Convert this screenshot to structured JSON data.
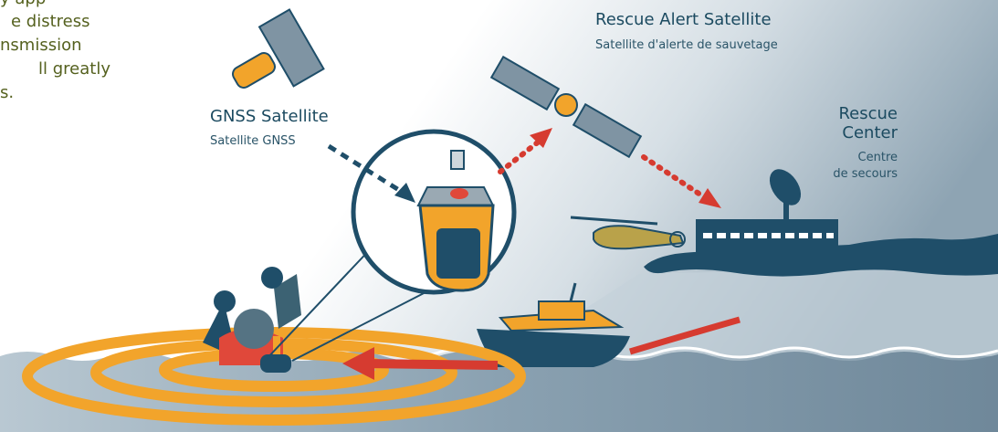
{
  "intro_text": {
    "lines": [
      "y app",
      "e distress",
      "nsmission",
      "ll greatly",
      "s."
    ]
  },
  "rescue_satellite": {
    "title": "Rescue Alert Satellite",
    "subtitle": "Satellite d'alerte de sauvetage"
  },
  "gnss_satellite": {
    "title": "GNSS Satellite",
    "subtitle": "Satellite GNSS"
  },
  "rescue_center": {
    "title": [
      "Rescue",
      "Center"
    ],
    "subtitle": [
      "Centre",
      "de secours"
    ]
  }
}
